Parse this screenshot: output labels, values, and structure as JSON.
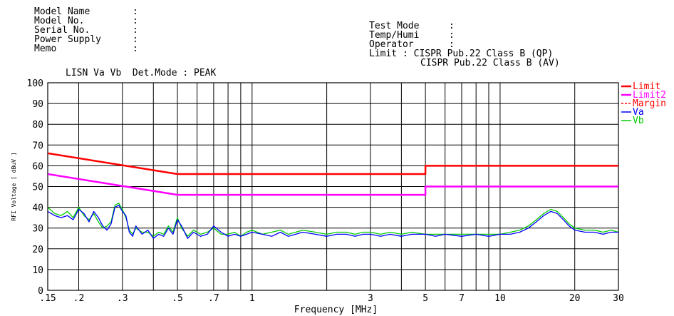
{
  "header": {
    "left_fields": [
      "Model Name",
      "Model No.",
      "Serial No.",
      "Power Supply",
      "Memo"
    ],
    "right_fields": [
      "Test Mode",
      "Temp/Humi",
      "Operator"
    ],
    "limit_label": "Limit : CISPR Pub.22 Class B (QP)",
    "limit_label2": "CISPR Pub.22 Class B (AV)",
    "lisn_label": "LISN Va Vb  Det.Mode : PEAK",
    "colon": ":"
  },
  "chart_data": {
    "type": "line",
    "xlabel": "Frequency [MHz]",
    "ylabel": "RFI Voltage [ dBuV ]",
    "x_scale": "log",
    "xlim": [
      0.15,
      30
    ],
    "ylim": [
      0,
      100
    ],
    "grid": true,
    "legend_position": "right",
    "y_ticks": [
      0,
      10,
      20,
      30,
      40,
      50,
      60,
      70,
      80,
      90,
      100
    ],
    "x_ticks": [
      {
        "value": 0.15,
        "label": ".15"
      },
      {
        "value": 0.2,
        "label": ".2"
      },
      {
        "value": 0.3,
        "label": ".3"
      },
      {
        "value": 0.5,
        "label": ".5"
      },
      {
        "value": 0.7,
        "label": ".7"
      },
      {
        "value": 1,
        "label": "1"
      },
      {
        "value": 3,
        "label": "3"
      },
      {
        "value": 5,
        "label": "5"
      },
      {
        "value": 7,
        "label": "7"
      },
      {
        "value": 10,
        "label": "10"
      },
      {
        "value": 20,
        "label": "20"
      },
      {
        "value": 30,
        "label": "30"
      }
    ],
    "x_gridlines": [
      0.2,
      0.3,
      0.4,
      0.5,
      0.6,
      0.7,
      0.8,
      0.9,
      1,
      2,
      3,
      4,
      5,
      6,
      7,
      8,
      9,
      10,
      20
    ],
    "series": [
      {
        "name": "Limit",
        "color": "#ff0000",
        "dash": "solid",
        "x": [
          0.15,
          0.5,
          0.5,
          5,
          5,
          30
        ],
        "y": [
          66,
          56,
          56,
          56,
          60,
          60
        ]
      },
      {
        "name": "Limit2",
        "color": "#ff00ff",
        "dash": "solid",
        "x": [
          0.15,
          0.5,
          0.5,
          5,
          5,
          30
        ],
        "y": [
          56,
          46,
          46,
          46,
          50,
          50
        ]
      },
      {
        "name": "Margin",
        "color": "#ff0000",
        "dash": "dashed",
        "x": [],
        "y": []
      },
      {
        "name": "Va",
        "color": "#0000ff",
        "dash": "solid",
        "x": [
          0.15,
          0.16,
          0.17,
          0.18,
          0.19,
          0.2,
          0.21,
          0.22,
          0.23,
          0.24,
          0.25,
          0.26,
          0.27,
          0.28,
          0.29,
          0.3,
          0.31,
          0.32,
          0.33,
          0.34,
          0.36,
          0.38,
          0.4,
          0.42,
          0.44,
          0.46,
          0.48,
          0.5,
          0.52,
          0.55,
          0.58,
          0.62,
          0.66,
          0.7,
          0.75,
          0.8,
          0.85,
          0.9,
          0.95,
          1.0,
          1.1,
          1.2,
          1.3,
          1.4,
          1.5,
          1.6,
          1.8,
          2.0,
          2.2,
          2.4,
          2.6,
          2.8,
          3.0,
          3.3,
          3.6,
          4.0,
          4.4,
          5.0,
          5.5,
          6.0,
          7.0,
          8.0,
          9.0,
          10.0,
          11.0,
          12.0,
          13.0,
          14.0,
          15.0,
          16.0,
          17.0,
          18.0,
          19.0,
          20.0,
          22.0,
          24.0,
          26.0,
          28.0,
          30.0
        ],
        "y": [
          38,
          36,
          35,
          36,
          34,
          39,
          37,
          33,
          38,
          35,
          31,
          29,
          32,
          40,
          41,
          38,
          36,
          28,
          26,
          31,
          27,
          29,
          25,
          27,
          26,
          30,
          27,
          34,
          31,
          25,
          28,
          26,
          27,
          31,
          28,
          26,
          27,
          26,
          27,
          28,
          27,
          26,
          28,
          26,
          27,
          28,
          27,
          26,
          27,
          27,
          26,
          27,
          27,
          26,
          27,
          26,
          27,
          27,
          26,
          27,
          26,
          27,
          26,
          27,
          27,
          28,
          30,
          33,
          36,
          38,
          37,
          34,
          31,
          29,
          28,
          28,
          27,
          28,
          28
        ]
      },
      {
        "name": "Vb",
        "color": "#00cc00",
        "dash": "solid",
        "x": [
          0.15,
          0.16,
          0.17,
          0.18,
          0.19,
          0.2,
          0.21,
          0.22,
          0.23,
          0.24,
          0.25,
          0.26,
          0.27,
          0.28,
          0.29,
          0.3,
          0.31,
          0.32,
          0.33,
          0.34,
          0.36,
          0.38,
          0.4,
          0.42,
          0.44,
          0.46,
          0.48,
          0.5,
          0.52,
          0.55,
          0.58,
          0.62,
          0.66,
          0.7,
          0.75,
          0.8,
          0.85,
          0.9,
          0.95,
          1.0,
          1.1,
          1.2,
          1.3,
          1.4,
          1.5,
          1.6,
          1.8,
          2.0,
          2.2,
          2.4,
          2.6,
          2.8,
          3.0,
          3.3,
          3.6,
          4.0,
          4.4,
          5.0,
          5.5,
          6.0,
          7.0,
          8.0,
          9.0,
          10.0,
          11.0,
          12.0,
          13.0,
          14.0,
          15.0,
          16.0,
          17.0,
          18.0,
          19.0,
          20.0,
          22.0,
          24.0,
          26.0,
          28.0,
          30.0
        ],
        "y": [
          40,
          37,
          36,
          38,
          35,
          40,
          36,
          34,
          37,
          33,
          30,
          31,
          33,
          41,
          42,
          39,
          35,
          29,
          27,
          30,
          28,
          28,
          26,
          28,
          27,
          31,
          28,
          35,
          30,
          26,
          29,
          27,
          28,
          30,
          27,
          27,
          28,
          26,
          28,
          29,
          27,
          28,
          29,
          27,
          28,
          29,
          28,
          27,
          28,
          28,
          27,
          28,
          28,
          27,
          28,
          27,
          28,
          27,
          27,
          27,
          27,
          27,
          27,
          27,
          28,
          29,
          31,
          34,
          37,
          39,
          38,
          35,
          32,
          30,
          29,
          29,
          28,
          29,
          28
        ]
      }
    ]
  }
}
